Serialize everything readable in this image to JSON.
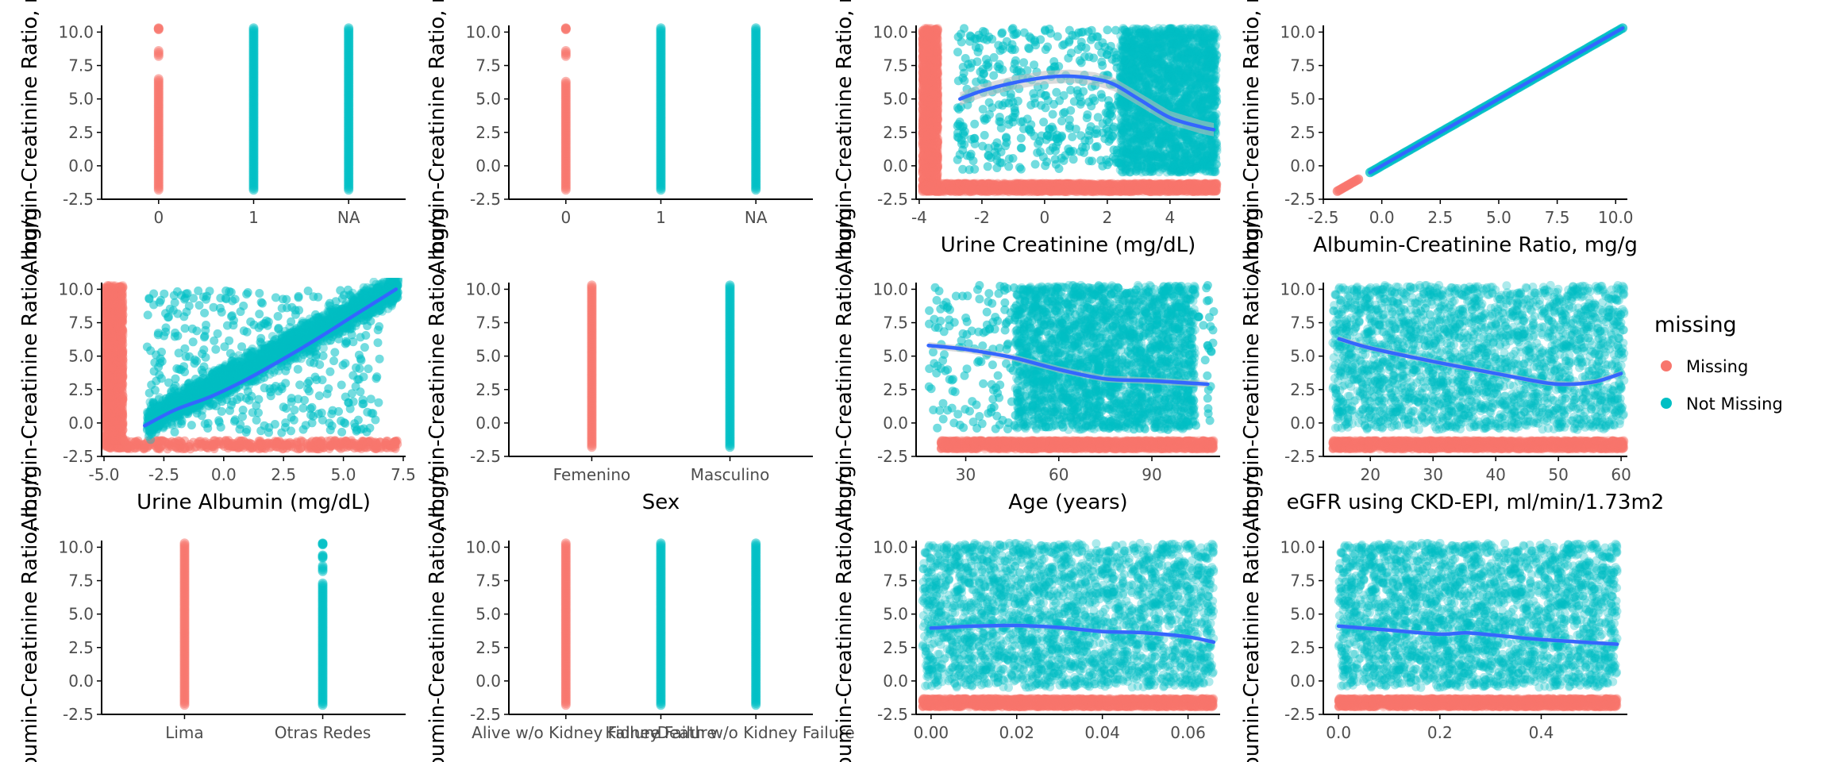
{
  "colors": {
    "missing": "#F8766D",
    "not_missing": "#00BFC4",
    "smooth": "#3366FF",
    "band": "#bdbdbd",
    "axis": "#000000",
    "tick_text": "#4d4d4d"
  },
  "legend": {
    "title": "missing",
    "items": [
      {
        "label": "Missing",
        "color_key": "missing"
      },
      {
        "label": "Not Missing",
        "color_key": "not_missing"
      }
    ],
    "placement": "right"
  },
  "chart_data": [
    {
      "id": "p1",
      "type": "scatter",
      "xscale": "discrete",
      "xlabel": "",
      "ylabel": "Albumin-Creatinine Ratio, mg/g",
      "ylim": [
        -2.5,
        10.5
      ],
      "yticks": [
        -2.5,
        0.0,
        2.5,
        5.0,
        7.5,
        10.0
      ],
      "ytick_labels": [
        "-2.5",
        "0.0",
        "2.5",
        "5.0",
        "7.5",
        "10.0"
      ],
      "categories": [
        "0",
        "1",
        "NA"
      ],
      "strips": [
        {
          "category": "0",
          "group": "missing",
          "segments": [
            [
              -1.8,
              6.5
            ],
            [
              8.2,
              8.6
            ],
            [
              10.2,
              10.3
            ]
          ]
        },
        {
          "category": "1",
          "group": "not_missing",
          "segments": [
            [
              -1.8,
              10.3
            ]
          ]
        },
        {
          "category": "NA",
          "group": "not_missing",
          "segments": [
            [
              -1.8,
              10.3
            ]
          ]
        }
      ]
    },
    {
      "id": "p2",
      "type": "scatter",
      "xscale": "discrete",
      "xlabel": "",
      "ylabel": "Albumin-Creatinine Ratio, mg/g",
      "ylim": [
        -2.5,
        10.5
      ],
      "yticks": [
        -2.5,
        0.0,
        2.5,
        5.0,
        7.5,
        10.0
      ],
      "ytick_labels": [
        "-2.5",
        "0.0",
        "2.5",
        "5.0",
        "7.5",
        "10.0"
      ],
      "categories": [
        "0",
        "1",
        "NA"
      ],
      "strips": [
        {
          "category": "0",
          "group": "missing",
          "segments": [
            [
              -1.8,
              6.3
            ],
            [
              8.2,
              8.6
            ],
            [
              10.2,
              10.3
            ]
          ]
        },
        {
          "category": "1",
          "group": "not_missing",
          "segments": [
            [
              -1.8,
              10.3
            ]
          ]
        },
        {
          "category": "NA",
          "group": "not_missing",
          "segments": [
            [
              -1.8,
              10.3
            ]
          ]
        }
      ]
    },
    {
      "id": "p3",
      "type": "scatter",
      "xscale": "continuous",
      "xlabel": "Urine Creatinine (mg/dL)",
      "ylabel": "Albumin-Creatinine Ratio, mg/g",
      "xlim": [
        -4.1,
        5.6
      ],
      "xticks": [
        -4,
        -2,
        0,
        2,
        4
      ],
      "xtick_labels": [
        "-4",
        "-2",
        "0",
        "2",
        "4"
      ],
      "ylim": [
        -2.5,
        10.5
      ],
      "yticks": [
        -2.5,
        0.0,
        2.5,
        5.0,
        7.5,
        10.0
      ],
      "ytick_labels": [
        "-2.5",
        "0.0",
        "2.5",
        "5.0",
        "7.5",
        "10.0"
      ],
      "clouds": [
        {
          "group": "not_missing",
          "x": [
            2.4,
            5.5
          ],
          "y": [
            -0.5,
            10.3
          ],
          "density": "high"
        },
        {
          "group": "not_missing",
          "x": [
            -2.8,
            2.4
          ],
          "y": [
            -0.3,
            10.3
          ],
          "density": "low"
        },
        {
          "group": "missing",
          "x": [
            -3.9,
            -3.4
          ],
          "y": [
            -1.9,
            10.3
          ],
          "density": "high"
        },
        {
          "group": "missing",
          "x": [
            -3.9,
            5.5
          ],
          "y": [
            -1.95,
            -1.3
          ],
          "density": "high"
        }
      ],
      "smooth": [
        [
          -2.7,
          5.0
        ],
        [
          -2.0,
          5.6
        ],
        [
          -1.0,
          6.2
        ],
        [
          0.0,
          6.6
        ],
        [
          0.8,
          6.7
        ],
        [
          1.6,
          6.5
        ],
        [
          2.2,
          6.1
        ],
        [
          3.0,
          5.0
        ],
        [
          4.0,
          3.6
        ],
        [
          5.0,
          2.9
        ],
        [
          5.4,
          2.7
        ]
      ],
      "band_halfwidth": 0.5
    },
    {
      "id": "p4",
      "type": "scatter",
      "xscale": "continuous",
      "xlabel": "Albumin-Creatinine Ratio, mg/g",
      "ylabel": "Albumin-Creatinine Ratio, mg/g",
      "xlim": [
        -2.5,
        10.5
      ],
      "xticks": [
        -2.5,
        0.0,
        2.5,
        5.0,
        7.5,
        10.0
      ],
      "xtick_labels": [
        "-2.5",
        "0.0",
        "2.5",
        "5.0",
        "7.5",
        "10.0"
      ],
      "ylim": [
        -2.5,
        10.5
      ],
      "yticks": [
        -2.5,
        0.0,
        2.5,
        5.0,
        7.5,
        10.0
      ],
      "ytick_labels": [
        "-2.5",
        "0.0",
        "2.5",
        "5.0",
        "7.5",
        "10.0"
      ],
      "diagonals": [
        {
          "group": "missing",
          "from": -1.9,
          "to": -1.0
        },
        {
          "group": "not_missing",
          "from": -0.5,
          "to": 10.3
        }
      ],
      "smooth": [
        [
          -0.5,
          -0.5
        ],
        [
          10.3,
          10.3
        ]
      ]
    },
    {
      "id": "p5",
      "type": "scatter",
      "xscale": "continuous",
      "xlabel": "Urine Albumin (mg/dL)",
      "ylabel": "Albumin-Creatinine Ratio, mg/g",
      "xlim": [
        -5.1,
        7.6
      ],
      "xticks": [
        -5.0,
        -2.5,
        0.0,
        2.5,
        5.0,
        7.5
      ],
      "xtick_labels": [
        "-5.0",
        "-2.5",
        "0.0",
        "2.5",
        "5.0",
        "7.5"
      ],
      "ylim": [
        -2.5,
        10.5
      ],
      "yticks": [
        -2.5,
        0.0,
        2.5,
        5.0,
        7.5,
        10.0
      ],
      "ytick_labels": [
        "-2.5",
        "0.0",
        "2.5",
        "5.0",
        "7.5",
        "10.0"
      ],
      "bands": [
        {
          "group": "not_missing",
          "from": [
            -3.2,
            0.0
          ],
          "to": [
            7.3,
            10.2
          ],
          "spread": 1.1,
          "density": "high"
        }
      ],
      "clouds": [
        {
          "group": "not_missing",
          "x": [
            -3.2,
            6.6
          ],
          "y": [
            -0.8,
            10.0
          ],
          "density": "low"
        },
        {
          "group": "missing",
          "x": [
            -5.0,
            -4.2
          ],
          "y": [
            -1.9,
            10.3
          ],
          "density": "high"
        },
        {
          "group": "missing",
          "x": [
            -4.2,
            7.3
          ],
          "y": [
            -1.95,
            -1.3
          ],
          "density": "low"
        }
      ],
      "smooth": [
        [
          -3.3,
          -0.2
        ],
        [
          -2.0,
          1.0
        ],
        [
          -0.5,
          2.0
        ],
        [
          1.0,
          3.3
        ],
        [
          2.5,
          4.8
        ],
        [
          4.0,
          6.4
        ],
        [
          5.5,
          8.1
        ],
        [
          7.2,
          10.0
        ]
      ]
    },
    {
      "id": "p6",
      "type": "scatter",
      "xscale": "discrete",
      "xlabel": "Sex",
      "ylabel": "Albumin-Creatinine Ratio, mg/g",
      "ylim": [
        -2.5,
        10.5
      ],
      "yticks": [
        -2.5,
        0.0,
        2.5,
        5.0,
        7.5,
        10.0
      ],
      "ytick_labels": [
        "-2.5",
        "0.0",
        "2.5",
        "5.0",
        "7.5",
        "10.0"
      ],
      "categories": [
        "Femenino",
        "Masculino"
      ],
      "strips": [
        {
          "category": "Femenino",
          "group": "missing",
          "segments": [
            [
              -1.8,
              10.3
            ]
          ]
        },
        {
          "category": "Masculino",
          "group": "not_missing",
          "segments": [
            [
              -1.8,
              10.3
            ]
          ]
        }
      ]
    },
    {
      "id": "p7",
      "type": "scatter",
      "xscale": "continuous",
      "xlabel": "Age (years)",
      "ylabel": "Albumin-Creatinine Ratio, mg/g",
      "xlim": [
        14,
        112
      ],
      "xticks": [
        30,
        60,
        90
      ],
      "xtick_labels": [
        "30",
        "60",
        "90"
      ],
      "ylim": [
        -2.5,
        10.5
      ],
      "yticks": [
        -2.5,
        0.0,
        2.5,
        5.0,
        7.5,
        10.0
      ],
      "ytick_labels": [
        "-2.5",
        "0.0",
        "2.5",
        "5.0",
        "7.5",
        "10.0"
      ],
      "clouds": [
        {
          "group": "not_missing",
          "x": [
            46,
            104
          ],
          "y": [
            -0.5,
            10.3
          ],
          "density": "high"
        },
        {
          "group": "not_missing",
          "x": [
            18,
            110
          ],
          "y": [
            -0.5,
            10.3
          ],
          "density": "low"
        },
        {
          "group": "missing",
          "x": [
            22,
            110
          ],
          "y": [
            -1.95,
            -1.3
          ],
          "density": "high"
        }
      ],
      "smooth": [
        [
          18,
          5.8
        ],
        [
          30,
          5.5
        ],
        [
          45,
          4.9
        ],
        [
          60,
          4.0
        ],
        [
          75,
          3.3
        ],
        [
          90,
          3.15
        ],
        [
          108,
          2.9
        ]
      ],
      "band_halfwidth": 0.25
    },
    {
      "id": "p8",
      "type": "scatter",
      "xscale": "continuous",
      "xlabel": "eGFR using CKD-EPI, ml/min/1.73m2",
      "ylabel": "Albumin-Creatinine Ratio, mg/g",
      "xlim": [
        12.5,
        61
      ],
      "xticks": [
        20,
        30,
        40,
        50,
        60
      ],
      "xtick_labels": [
        "20",
        "30",
        "40",
        "50",
        "60"
      ],
      "ylim": [
        -2.5,
        10.5
      ],
      "yticks": [
        -2.5,
        0.0,
        2.5,
        5.0,
        7.5,
        10.0
      ],
      "ytick_labels": [
        "-2.5",
        "0.0",
        "2.5",
        "5.0",
        "7.5",
        "10.0"
      ],
      "clouds": [
        {
          "group": "not_missing",
          "x": [
            14,
            60.5
          ],
          "y": [
            -0.5,
            10.3
          ],
          "density": "high"
        },
        {
          "group": "missing",
          "x": [
            14,
            60.5
          ],
          "y": [
            -1.95,
            -1.3
          ],
          "density": "high"
        }
      ],
      "smooth": [
        [
          15,
          6.3
        ],
        [
          20,
          5.6
        ],
        [
          30,
          4.6
        ],
        [
          40,
          3.7
        ],
        [
          48,
          3.0
        ],
        [
          52,
          2.9
        ],
        [
          56,
          3.1
        ],
        [
          60,
          3.7
        ]
      ],
      "band_halfwidth": 0.2
    },
    {
      "id": "p9",
      "type": "scatter",
      "xscale": "discrete",
      "xlabel": "",
      "ylabel": "Albumin-Creatinine Ratio, mg/g",
      "ylim": [
        -2.5,
        10.5
      ],
      "yticks": [
        -2.5,
        0.0,
        2.5,
        5.0,
        7.5,
        10.0
      ],
      "ytick_labels": [
        "-2.5",
        "0.0",
        "2.5",
        "5.0",
        "7.5",
        "10.0"
      ],
      "categories": [
        "Lima",
        "Otras Redes"
      ],
      "strips": [
        {
          "category": "Lima",
          "group": "missing",
          "segments": [
            [
              -1.8,
              10.3
            ]
          ]
        },
        {
          "category": "Otras Redes",
          "group": "not_missing",
          "segments": [
            [
              -1.8,
              7.3
            ],
            [
              8.2,
              8.6
            ],
            [
              9.2,
              9.4
            ],
            [
              10.2,
              10.3
            ]
          ]
        }
      ]
    },
    {
      "id": "p10",
      "type": "scatter",
      "xscale": "discrete",
      "xlabel": "",
      "ylabel": "Albumin-Creatinine Ratio, mg/g",
      "ylim": [
        -2.5,
        10.5
      ],
      "yticks": [
        -2.5,
        0.0,
        2.5,
        5.0,
        7.5,
        10.0
      ],
      "ytick_labels": [
        "-2.5",
        "0.0",
        "2.5",
        "5.0",
        "7.5",
        "10.0"
      ],
      "categories": [
        "Alive w/o Kidney Failure",
        "Kidney Failure",
        "Death w/o Kidney Failure"
      ],
      "strips": [
        {
          "category": "Alive w/o Kidney Failure",
          "group": "missing",
          "segments": [
            [
              -1.8,
              10.3
            ]
          ]
        },
        {
          "category": "Kidney Failure",
          "group": "not_missing",
          "segments": [
            [
              -1.8,
              10.3
            ]
          ]
        },
        {
          "category": "Death w/o Kidney Failure",
          "group": "not_missing",
          "segments": [
            [
              -1.8,
              10.3
            ]
          ]
        }
      ]
    },
    {
      "id": "p11",
      "type": "scatter",
      "xscale": "continuous",
      "xlabel": "",
      "ylabel": "Albumin-Creatinine Ratio, mg/g",
      "xlim": [
        -0.0035,
        0.0675
      ],
      "xticks": [
        0.0,
        0.02,
        0.04,
        0.06
      ],
      "xtick_labels": [
        "0.00",
        "0.02",
        "0.04",
        "0.06"
      ],
      "ylim": [
        -2.5,
        10.5
      ],
      "yticks": [
        -2.5,
        0.0,
        2.5,
        5.0,
        7.5,
        10.0
      ],
      "ytick_labels": [
        "-2.5",
        "0.0",
        "2.5",
        "5.0",
        "7.5",
        "10.0"
      ],
      "clouds": [
        {
          "group": "not_missing",
          "x": [
            -0.002,
            0.066
          ],
          "y": [
            -0.5,
            10.3
          ],
          "density": "high"
        },
        {
          "group": "missing",
          "x": [
            -0.002,
            0.066
          ],
          "y": [
            -1.95,
            -1.3
          ],
          "density": "high"
        }
      ],
      "smooth": [
        [
          0.0,
          3.95
        ],
        [
          0.01,
          4.1
        ],
        [
          0.02,
          4.15
        ],
        [
          0.03,
          4.0
        ],
        [
          0.04,
          3.7
        ],
        [
          0.05,
          3.6
        ],
        [
          0.06,
          3.3
        ],
        [
          0.066,
          2.9
        ]
      ],
      "band_halfwidth": 0.15
    },
    {
      "id": "p12",
      "type": "scatter",
      "xscale": "continuous",
      "xlabel": "",
      "ylabel": "Albumin-Creatinine Ratio, mg/g",
      "xlim": [
        -0.03,
        0.57
      ],
      "xticks": [
        0.0,
        0.2,
        0.4
      ],
      "xtick_labels": [
        "0.0",
        "0.2",
        "0.4"
      ],
      "ylim": [
        -2.5,
        10.5
      ],
      "yticks": [
        -2.5,
        0.0,
        2.5,
        5.0,
        7.5,
        10.0
      ],
      "ytick_labels": [
        "-2.5",
        "0.0",
        "2.5",
        "5.0",
        "7.5",
        "10.0"
      ],
      "clouds": [
        {
          "group": "not_missing",
          "x": [
            0.0,
            0.55
          ],
          "y": [
            -0.5,
            10.3
          ],
          "density": "high"
        },
        {
          "group": "missing",
          "x": [
            0.0,
            0.55
          ],
          "y": [
            -1.95,
            -1.3
          ],
          "density": "high"
        }
      ],
      "smooth": [
        [
          0.0,
          4.1
        ],
        [
          0.1,
          3.8
        ],
        [
          0.2,
          3.5
        ],
        [
          0.25,
          3.6
        ],
        [
          0.3,
          3.45
        ],
        [
          0.4,
          3.1
        ],
        [
          0.55,
          2.75
        ]
      ],
      "band_halfwidth": 0.15
    }
  ]
}
